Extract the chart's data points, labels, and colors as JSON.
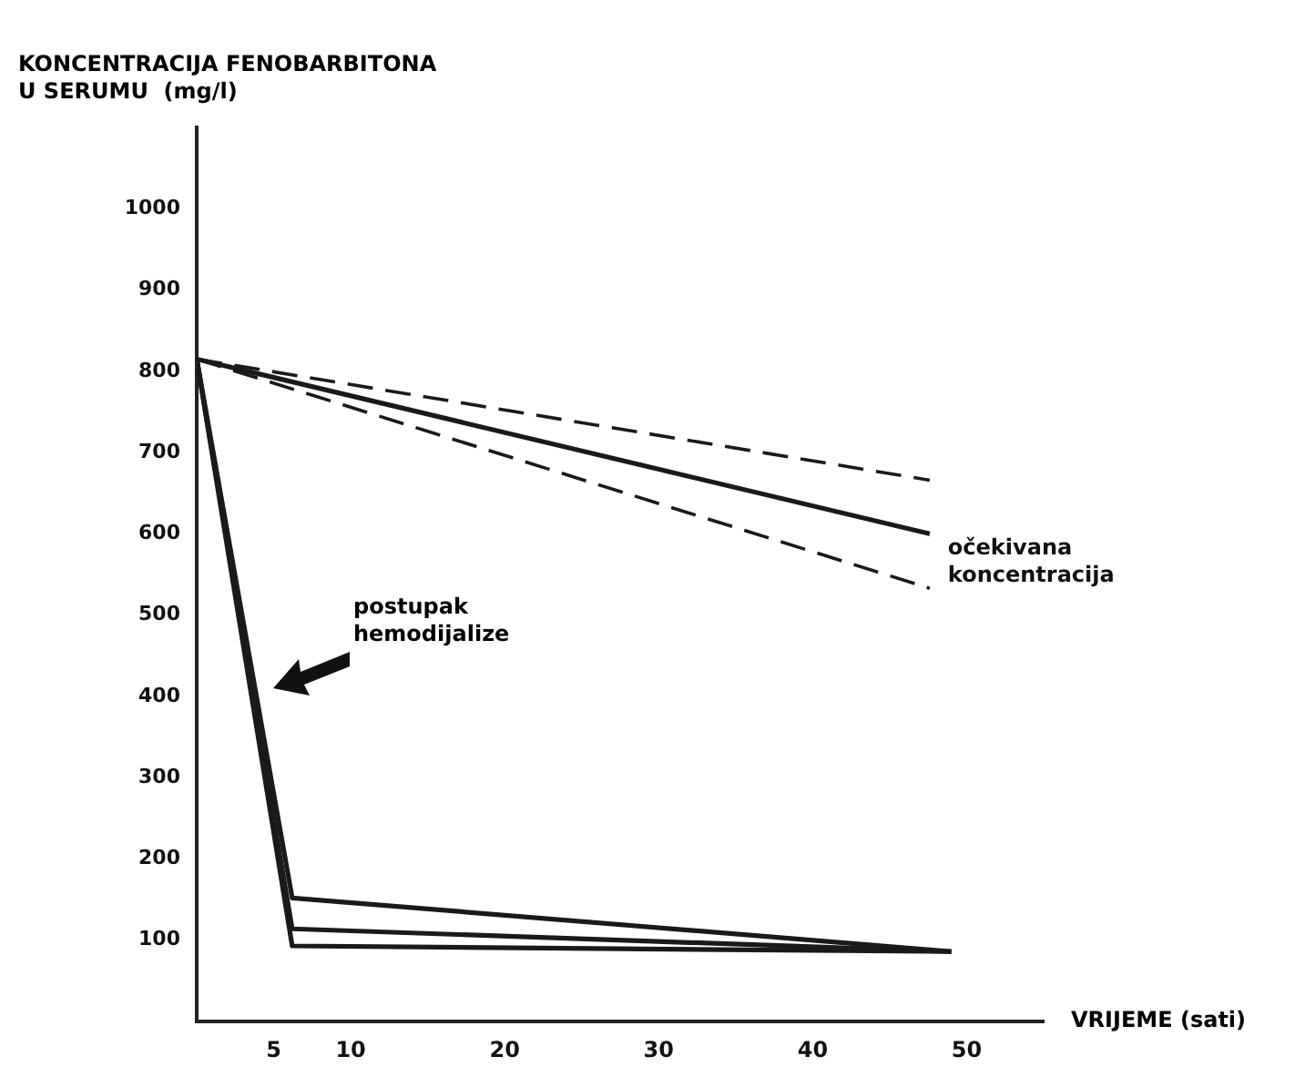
{
  "chart_data": {
    "type": "line",
    "ylabel": "KONCENTRACIJA FENOBARBITONA\nU SERUMU  (mg/l)",
    "xlabel": "VRIJEME (sati)",
    "xlim": [
      0,
      55
    ],
    "xticks": [
      5,
      10,
      20,
      30,
      40,
      50
    ],
    "ylim": [
      0,
      1100
    ],
    "yticks": [
      100,
      200,
      300,
      400,
      500,
      600,
      700,
      800,
      900,
      1000
    ],
    "grid": false,
    "legend": false,
    "marker": "none",
    "series": [
      {
        "color": "#1a1a1a",
        "x": [
          0,
          47.6
        ],
        "values": [
          815,
          600
        ],
        "line_style": "solid"
      },
      {
        "color": "#1a1a1a",
        "x": [
          0,
          47.6
        ],
        "values": [
          815,
          666
        ],
        "line_style": "dashed"
      },
      {
        "color": "#1a1a1a",
        "x": [
          0,
          47.6
        ],
        "values": [
          815,
          533
        ],
        "line_style": "dashed"
      },
      {
        "color": "#1a1a1a",
        "x": [
          0,
          6.2,
          49
        ],
        "values": [
          815,
          152,
          86
        ],
        "line_style": "solid"
      },
      {
        "color": "#1a1a1a",
        "x": [
          0,
          6.2,
          49
        ],
        "values": [
          815,
          114,
          86
        ],
        "line_style": "solid"
      },
      {
        "color": "#1a1a1a",
        "x": [
          0,
          6.2,
          49
        ],
        "values": [
          815,
          93,
          86
        ],
        "line_style": "solid"
      }
    ],
    "annotations": [
      {
        "text": "očekivana koncentracija",
        "x": 47.6,
        "y": 600
      },
      "postupak hemodijalize"
    ]
  }
}
